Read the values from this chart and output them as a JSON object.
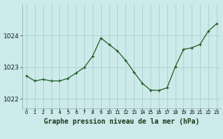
{
  "x": [
    0,
    1,
    2,
    3,
    4,
    5,
    6,
    7,
    8,
    9,
    10,
    11,
    12,
    13,
    14,
    15,
    16,
    17,
    18,
    19,
    20,
    21,
    22,
    23
  ],
  "y": [
    1022.73,
    1022.57,
    1022.62,
    1022.57,
    1022.57,
    1022.65,
    1022.82,
    1023.0,
    1023.35,
    1023.93,
    1023.72,
    1023.52,
    1023.22,
    1022.85,
    1022.5,
    1022.28,
    1022.27,
    1022.35,
    1023.02,
    1023.57,
    1023.62,
    1023.73,
    1024.15,
    1024.38
  ],
  "title": "Graphe pression niveau de la mer (hPa)",
  "line_color": "#1f5c1f",
  "marker_color": "#1f5c1f",
  "bg_color": "#cceaea",
  "grid_major_color": "#aacece",
  "grid_minor_color": "#bbdddd",
  "yticks": [
    1022,
    1023,
    1024
  ],
  "ylim": [
    1021.7,
    1025.0
  ],
  "xlim": [
    -0.5,
    23.5
  ],
  "ylabel_fontsize": 6,
  "xlabel_fontsize": 7
}
